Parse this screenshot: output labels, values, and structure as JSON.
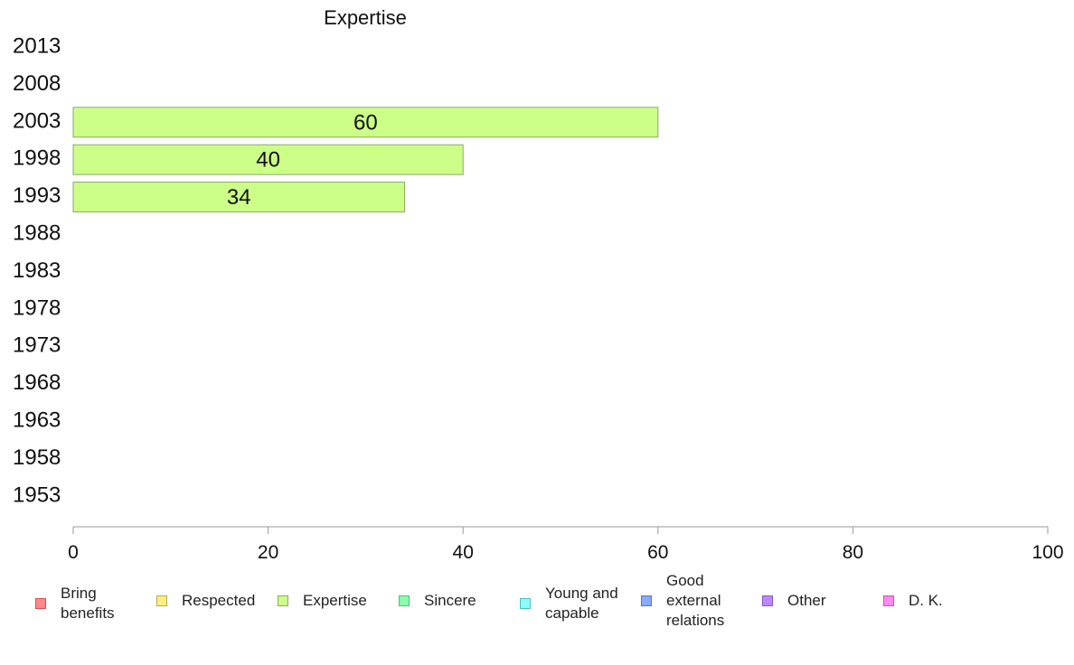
{
  "chart_data": {
    "type": "bar",
    "orientation": "horizontal",
    "title": "Expertise",
    "categories": [
      "2013",
      "2008",
      "2003",
      "1998",
      "1993",
      "1988",
      "1983",
      "1978",
      "1973",
      "1968",
      "1963",
      "1958",
      "1953"
    ],
    "series": [
      {
        "name": "Expertise",
        "values": [
          null,
          null,
          60,
          40,
          34,
          null,
          null,
          null,
          null,
          null,
          null,
          null,
          null
        ]
      }
    ],
    "data_labels": [
      "",
      "",
      "60",
      "40",
      "34",
      "",
      "",
      "",
      "",
      "",
      "",
      "",
      ""
    ],
    "xlim": [
      0,
      100
    ],
    "x_ticks": [
      0,
      20,
      40,
      60,
      80,
      100
    ],
    "x_tick_labels": [
      "0",
      "20",
      "40",
      "60",
      "80",
      "100"
    ],
    "xlabel": "",
    "ylabel": "",
    "grid": false,
    "legend_position": "bottom",
    "bar_color": "#ccff88",
    "bar_border_color": "#88aa66",
    "axis_color": "#999999"
  },
  "legend": {
    "items": [
      {
        "label": "Bring benefits",
        "fill": "#ff8888",
        "border": "#cc5555"
      },
      {
        "label": "Respected",
        "fill": "#ffee88",
        "border": "#bbaa44"
      },
      {
        "label": "Expertise",
        "fill": "#ccff88",
        "border": "#88aa66"
      },
      {
        "label": "Sincere",
        "fill": "#88ffaa",
        "border": "#55bb77"
      },
      {
        "label": "Young and capable",
        "fill": "#88ffff",
        "border": "#55bbbb"
      },
      {
        "label": "Good external relations",
        "fill": "#88aaff",
        "border": "#5577cc"
      },
      {
        "label": "Other",
        "fill": "#bb88ff",
        "border": "#8855cc"
      },
      {
        "label": "D. K.",
        "fill": "#ff88ee",
        "border": "#cc55bb"
      }
    ]
  }
}
